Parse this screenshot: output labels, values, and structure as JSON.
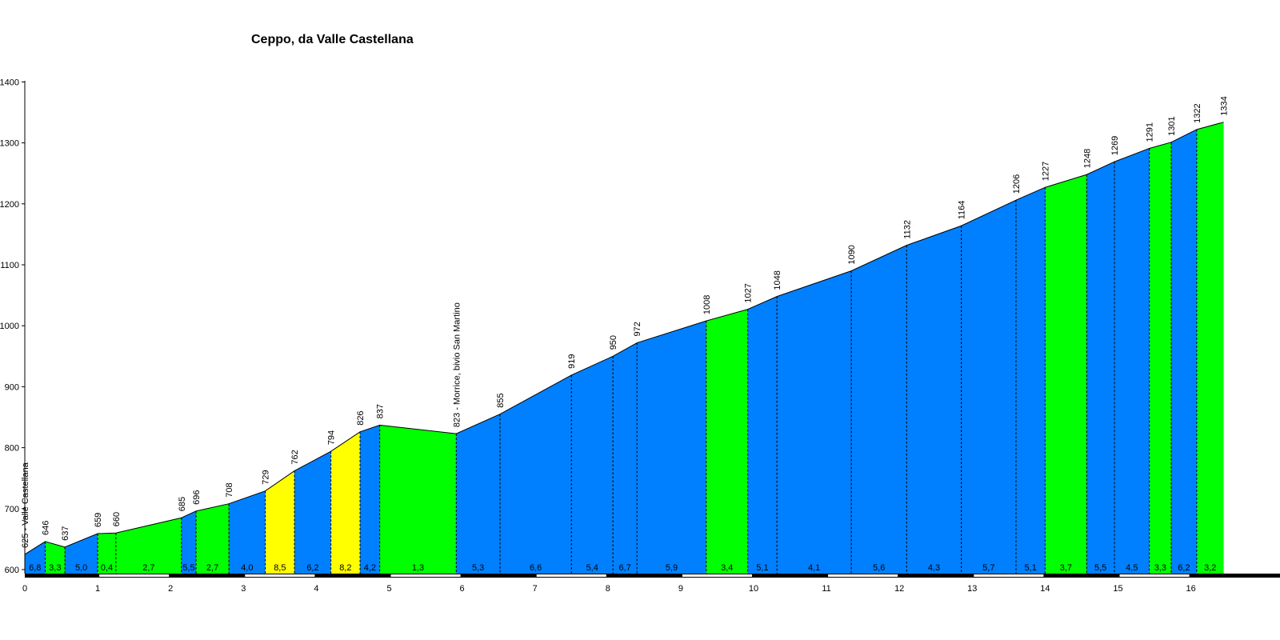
{
  "chart_data": {
    "type": "area",
    "title": "Ceppo, da Valle Castellana",
    "xlabel": "",
    "ylabel": "",
    "xlim": [
      0,
      17.2
    ],
    "ylim": [
      600,
      1400
    ],
    "x_ticks": [
      "0",
      "1",
      "2",
      "3",
      "4",
      "5",
      "6",
      "7",
      "8",
      "9",
      "10",
      "11",
      "12",
      "13",
      "14",
      "15",
      "16"
    ],
    "y_ticks": [
      "600",
      "700",
      "800",
      "900",
      "1000",
      "1100",
      "1200",
      "1300",
      "1400"
    ],
    "colors": {
      "blue": "#0080ff",
      "green": "#00ff00",
      "yellow": "#ffff00",
      "axis": "#000000"
    },
    "profile": [
      {
        "km": 0.0,
        "alt": 625,
        "label": "625 - Valle Castellana"
      },
      {
        "km": 0.28,
        "alt": 646,
        "label": "646"
      },
      {
        "km": 0.55,
        "alt": 637,
        "label": "637"
      },
      {
        "km": 1.0,
        "alt": 659,
        "label": "659"
      },
      {
        "km": 1.25,
        "alt": 660,
        "label": "660"
      },
      {
        "km": 2.15,
        "alt": 685,
        "label": "685"
      },
      {
        "km": 2.35,
        "alt": 696,
        "label": "696"
      },
      {
        "km": 2.8,
        "alt": 708,
        "label": "708"
      },
      {
        "km": 3.3,
        "alt": 729,
        "label": "729"
      },
      {
        "km": 3.7,
        "alt": 762,
        "label": "762"
      },
      {
        "km": 4.2,
        "alt": 794,
        "label": "794"
      },
      {
        "km": 4.6,
        "alt": 826,
        "label": "826"
      },
      {
        "km": 4.87,
        "alt": 837,
        "label": "837"
      },
      {
        "km": 5.92,
        "alt": 823,
        "label": "823 - Morrice, bivio San Martino"
      },
      {
        "km": 6.52,
        "alt": 855,
        "label": "855"
      },
      {
        "km": 7.5,
        "alt": 919,
        "label": "919"
      },
      {
        "km": 8.07,
        "alt": 950,
        "label": "950"
      },
      {
        "km": 8.4,
        "alt": 972,
        "label": "972"
      },
      {
        "km": 9.35,
        "alt": 1008,
        "label": "1008"
      },
      {
        "km": 9.92,
        "alt": 1027,
        "label": "1027"
      },
      {
        "km": 10.32,
        "alt": 1048,
        "label": "1048"
      },
      {
        "km": 11.34,
        "alt": 1090,
        "label": "1090"
      },
      {
        "km": 12.1,
        "alt": 1132,
        "label": "1132"
      },
      {
        "km": 12.85,
        "alt": 1164,
        "label": "1164"
      },
      {
        "km": 13.6,
        "alt": 1206,
        "label": "1206"
      },
      {
        "km": 14.0,
        "alt": 1227,
        "label": "1227"
      },
      {
        "km": 14.57,
        "alt": 1248,
        "label": "1248"
      },
      {
        "km": 14.95,
        "alt": 1269,
        "label": "1269"
      },
      {
        "km": 15.43,
        "alt": 1291,
        "label": "1291"
      },
      {
        "km": 15.73,
        "alt": 1301,
        "label": "1301"
      },
      {
        "km": 16.08,
        "alt": 1322,
        "label": "1322"
      },
      {
        "km": 16.45,
        "alt": 1334,
        "label": "1334"
      }
    ],
    "segments": [
      {
        "grade": "6,8",
        "color": "blue"
      },
      {
        "grade": "3,3",
        "color": "green"
      },
      {
        "grade": "5,0",
        "color": "blue"
      },
      {
        "grade": "0,4",
        "color": "green"
      },
      {
        "grade": "2,7",
        "color": "green"
      },
      {
        "grade": "5,5",
        "color": "blue"
      },
      {
        "grade": "2,7",
        "color": "green"
      },
      {
        "grade": "4,0",
        "color": "blue"
      },
      {
        "grade": "8,5",
        "color": "yellow"
      },
      {
        "grade": "6,2",
        "color": "blue"
      },
      {
        "grade": "8,2",
        "color": "yellow"
      },
      {
        "grade": "4,2",
        "color": "blue"
      },
      {
        "grade": "1,3",
        "color": "green"
      },
      {
        "grade": "5,3",
        "color": "blue"
      },
      {
        "grade": "6,6",
        "color": "blue"
      },
      {
        "grade": "5,4",
        "color": "blue"
      },
      {
        "grade": "6,7",
        "color": "blue"
      },
      {
        "grade": "5,9",
        "color": "blue"
      },
      {
        "grade": "3,4",
        "color": "green"
      },
      {
        "grade": "5,1",
        "color": "blue"
      },
      {
        "grade": "4,1",
        "color": "blue"
      },
      {
        "grade": "5,6",
        "color": "blue"
      },
      {
        "grade": "4,3",
        "color": "blue"
      },
      {
        "grade": "5,7",
        "color": "blue"
      },
      {
        "grade": "5,1",
        "color": "blue"
      },
      {
        "grade": "3,7",
        "color": "green"
      },
      {
        "grade": "5,5",
        "color": "blue"
      },
      {
        "grade": "4,5",
        "color": "blue"
      },
      {
        "grade": "3,3",
        "color": "green"
      },
      {
        "grade": "6,2",
        "color": "blue"
      },
      {
        "grade": "3,2",
        "color": "green"
      }
    ]
  }
}
